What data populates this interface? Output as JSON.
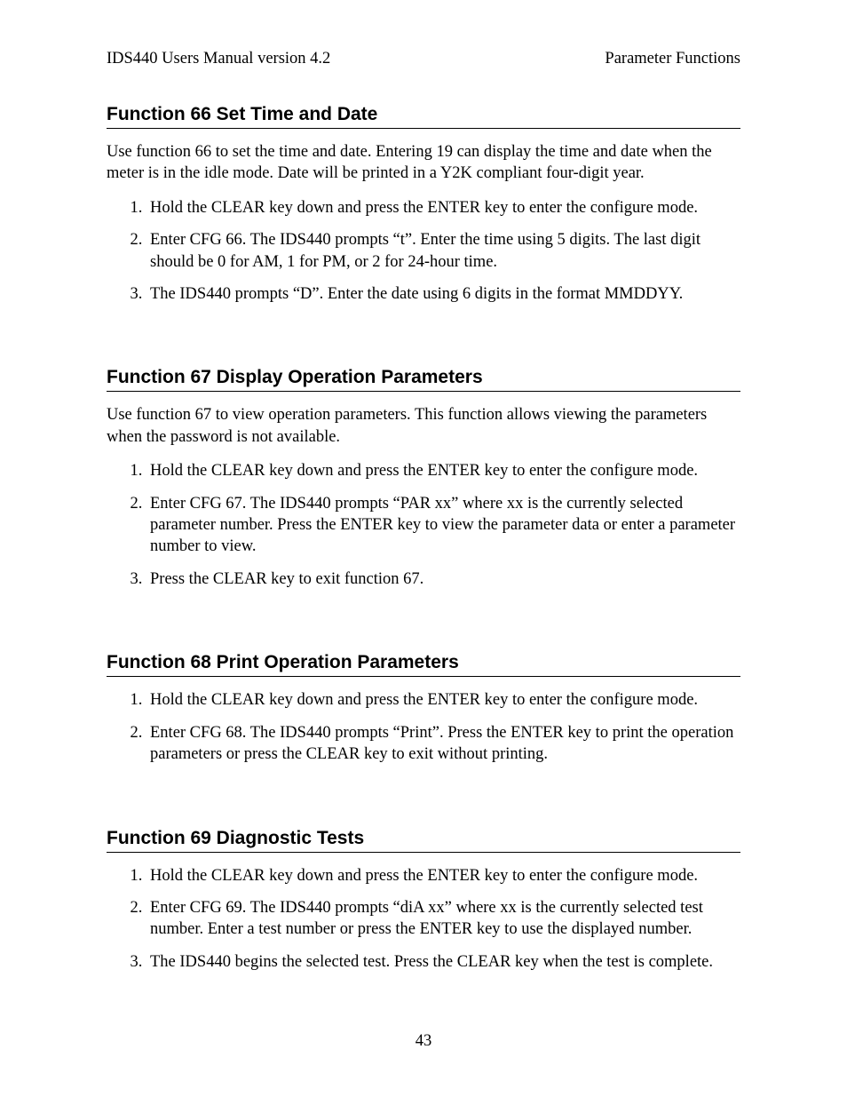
{
  "header": {
    "left": "IDS440 Users Manual version 4.2",
    "right": "Parameter Functions"
  },
  "sections": [
    {
      "title": "Function 66 Set Time and Date",
      "intro": "Use function 66 to set the time and date.  Entering 19 can display the time and date when the meter is in the idle mode. Date will be printed in a Y2K compliant four-digit year.",
      "items": [
        "Hold the CLEAR key down and press the ENTER key to enter the configure mode.",
        "Enter CFG 66.  The IDS440 prompts “t”.  Enter the time using 5 digits.  The last digit should be 0 for AM, 1 for PM, or 2 for 24-hour time.",
        "The IDS440 prompts “D”.  Enter the date using 6 digits in the format MMDDYY."
      ]
    },
    {
      "title": "Function 67 Display Operation Parameters",
      "intro": "Use function 67 to view operation parameters.  This function allows viewing the parameters when the password is not available.",
      "items": [
        "Hold the CLEAR key down and press the ENTER key to enter the configure mode.",
        "Enter CFG 67.  The IDS440 prompts “PAR xx” where xx is the currently selected parameter number.  Press the ENTER key to view the parameter data or enter a parameter number to view.",
        "Press the CLEAR key to exit function 67."
      ]
    },
    {
      "title": "Function 68 Print Operation Parameters",
      "intro": "",
      "items": [
        "Hold the CLEAR key down and press the ENTER key to enter the configure mode.",
        "Enter CFG 68.  The IDS440 prompts “Print”.  Press the ENTER key to print the operation parameters or press the CLEAR key to exit without printing."
      ]
    },
    {
      "title": "Function 69 Diagnostic Tests",
      "intro": "",
      "items": [
        "Hold the CLEAR key down and press the ENTER key to enter the configure mode.",
        "Enter CFG 69.  The IDS440 prompts “diA xx” where xx is the currently selected test number.   Enter a test number or press the ENTER key to use the displayed number.",
        "The IDS440 begins the selected test.  Press the CLEAR key when the test is complete."
      ]
    }
  ],
  "page_number": "43"
}
